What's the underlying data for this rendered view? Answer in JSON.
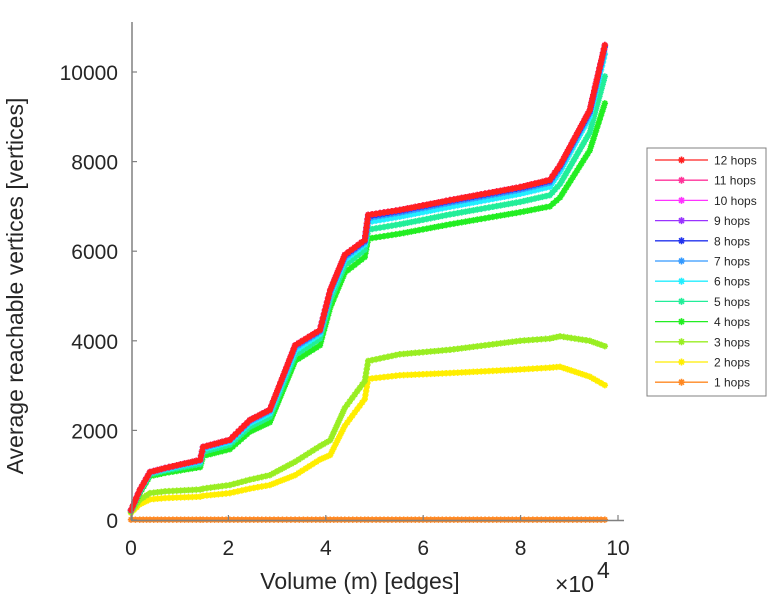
{
  "chart_data": {
    "type": "line",
    "title": "",
    "xlabel": "Volume (m) [edges]",
    "ylabel": "Average reachable vertices [vertices]",
    "x_multiplier": "×10",
    "x_multiplier_exp": "4",
    "xlim": [
      0,
      10
    ],
    "ylim": [
      0,
      11000
    ],
    "xticks": [
      0,
      2,
      4,
      6,
      8,
      10
    ],
    "xtick_labels": [
      "0",
      "2",
      "4",
      "6",
      "8",
      "10"
    ],
    "yticks": [
      0,
      2000,
      4000,
      6000,
      8000,
      10000
    ],
    "ytick_labels": [
      "0",
      "2000",
      "4000",
      "6000",
      "8000",
      "10000"
    ],
    "grid": false,
    "legend_position": "right",
    "x": [
      0,
      0.18,
      0.39,
      0.7,
      1.42,
      1.48,
      2.03,
      2.44,
      2.85,
      3.37,
      3.88,
      4.09,
      4.39,
      4.8,
      4.87,
      5.52,
      6.55,
      7.99,
      8.6,
      8.81,
      9.42,
      9.73
    ],
    "series": [
      {
        "name": "12 hops",
        "color": "#ff2020",
        "values": [
          220,
          670,
          1070,
          1160,
          1340,
          1630,
          1790,
          2230,
          2460,
          3900,
          4240,
          5130,
          5920,
          6250,
          6810,
          6920,
          7140,
          7430,
          7590,
          7920,
          9150,
          10600
        ]
      },
      {
        "name": "11 hops",
        "color": "#ff3399",
        "values": [
          220,
          670,
          1070,
          1160,
          1340,
          1630,
          1790,
          2230,
          2460,
          3900,
          4240,
          5130,
          5920,
          6250,
          6810,
          6920,
          7140,
          7430,
          7590,
          7920,
          9150,
          10600
        ]
      },
      {
        "name": "10 hops",
        "color": "#ff33ff",
        "values": [
          220,
          670,
          1070,
          1160,
          1340,
          1630,
          1790,
          2230,
          2460,
          3900,
          4240,
          5130,
          5920,
          6250,
          6810,
          6920,
          7140,
          7430,
          7590,
          7920,
          9150,
          10600
        ]
      },
      {
        "name": "9 hops",
        "color": "#9933ff",
        "values": [
          220,
          670,
          1070,
          1160,
          1340,
          1630,
          1790,
          2230,
          2460,
          3900,
          4240,
          5130,
          5920,
          6250,
          6810,
          6920,
          7140,
          7430,
          7590,
          7920,
          9150,
          10600
        ]
      },
      {
        "name": "8 hops",
        "color": "#2233ee",
        "values": [
          220,
          670,
          1070,
          1160,
          1340,
          1630,
          1790,
          2230,
          2460,
          3890,
          4230,
          5120,
          5900,
          6230,
          6780,
          6900,
          7120,
          7410,
          7570,
          7900,
          9120,
          10580
        ]
      },
      {
        "name": "7 hops",
        "color": "#3399ff",
        "values": [
          220,
          660,
          1060,
          1150,
          1320,
          1610,
          1770,
          2200,
          2430,
          3850,
          4200,
          5080,
          5860,
          6200,
          6740,
          6860,
          7080,
          7370,
          7530,
          7860,
          9080,
          10550
        ]
      },
      {
        "name": "6 hops",
        "color": "#22eeff",
        "values": [
          215,
          650,
          1050,
          1130,
          1300,
          1580,
          1740,
          2160,
          2380,
          3780,
          4150,
          5020,
          5800,
          6150,
          6650,
          6770,
          6990,
          7280,
          7440,
          7780,
          9000,
          10400
        ]
      },
      {
        "name": "5 hops",
        "color": "#22ee99",
        "values": [
          210,
          630,
          1020,
          1100,
          1250,
          1520,
          1680,
          2080,
          2300,
          3680,
          4050,
          4900,
          5680,
          6030,
          6480,
          6600,
          6820,
          7100,
          7250,
          7500,
          8650,
          9900
        ]
      },
      {
        "name": "4 hops",
        "color": "#22ee22",
        "values": [
          200,
          600,
          980,
          1050,
          1180,
          1430,
          1580,
          1970,
          2180,
          3550,
          3900,
          4740,
          5520,
          5870,
          6280,
          6390,
          6600,
          6870,
          7000,
          7200,
          8250,
          9300
        ]
      },
      {
        "name": "3 hops",
        "color": "#99ee22",
        "values": [
          180,
          450,
          600,
          640,
          680,
          700,
          780,
          900,
          1000,
          1300,
          1650,
          1780,
          2500,
          3100,
          3550,
          3700,
          3800,
          4000,
          4050,
          4100,
          4000,
          3880
        ]
      },
      {
        "name": "2 hops",
        "color": "#ffee00",
        "values": [
          160,
          350,
          460,
          490,
          520,
          540,
          600,
          700,
          780,
          1000,
          1350,
          1450,
          2100,
          2700,
          3150,
          3230,
          3280,
          3360,
          3400,
          3420,
          3200,
          3010
        ]
      },
      {
        "name": "1 hops",
        "color": "#ff8822",
        "values": [
          8,
          8,
          8,
          8,
          8,
          8,
          8,
          8,
          8,
          8,
          8,
          8,
          8,
          8,
          8,
          8,
          8,
          8,
          8,
          8,
          8,
          8
        ]
      }
    ]
  }
}
